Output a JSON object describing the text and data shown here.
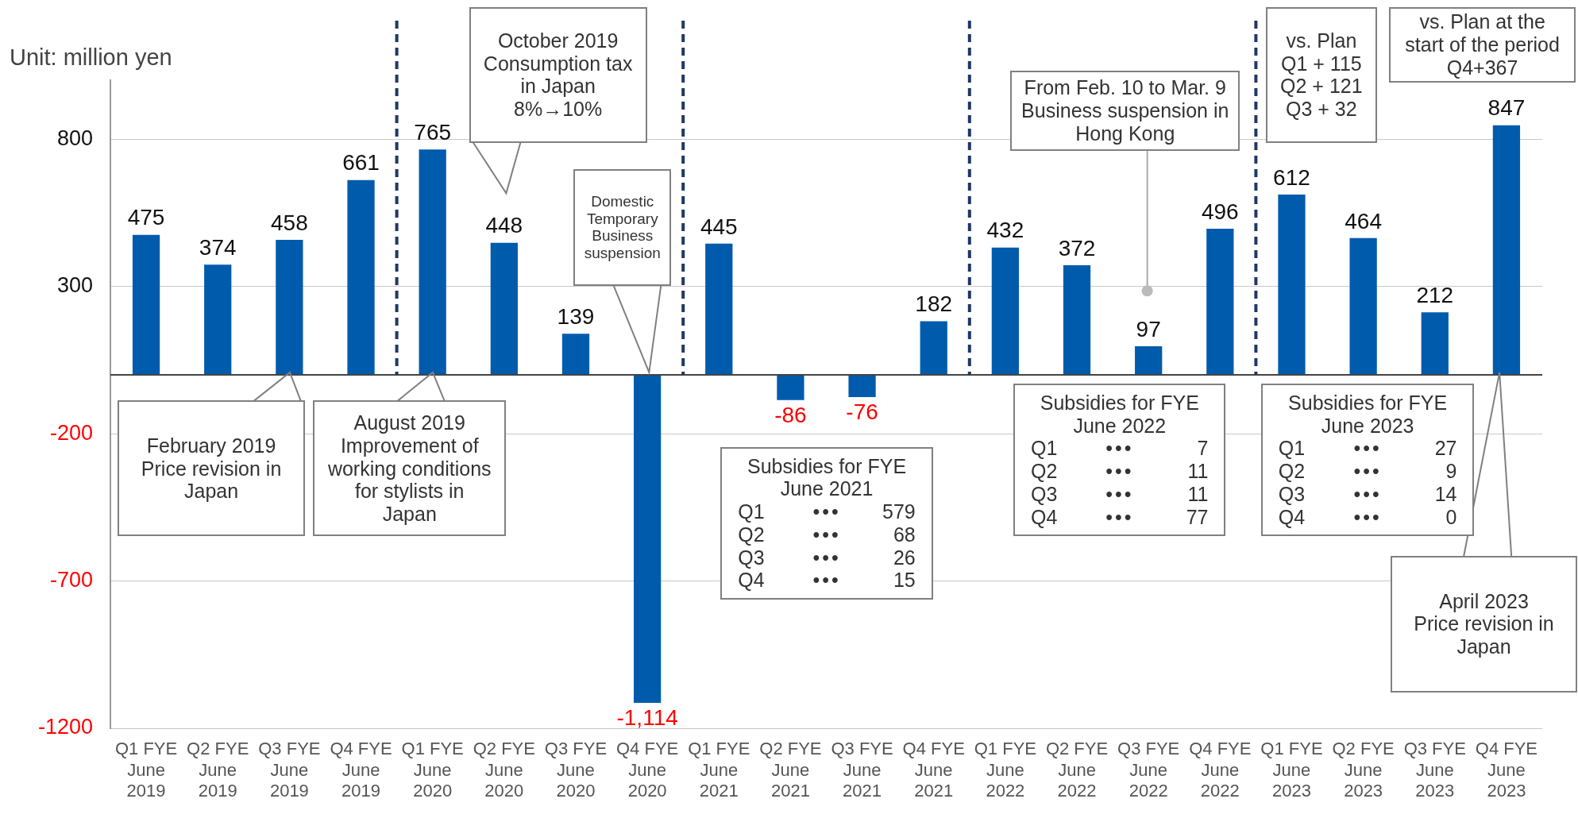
{
  "chart_data": {
    "type": "bar",
    "ylabel": "Unit: million yen",
    "categories": [
      "Q1 FYE June 2019",
      "Q2 FYE June 2019",
      "Q3 FYE June 2019",
      "Q4 FYE June 2019",
      "Q1 FYE June 2020",
      "Q2 FYE June 2020",
      "Q3 FYE June 2020",
      "Q4 FYE June 2020",
      "Q1 FYE June 2021",
      "Q2 FYE June 2021",
      "Q3 FYE June 2021",
      "Q4 FYE June 2021",
      "Q1 FYE June 2022",
      "Q2 FYE June 2022",
      "Q3 FYE June 2022",
      "Q4 FYE June 2022",
      "Q1 FYE June 2023",
      "Q2 FYE June 2023",
      "Q3 FYE June 2023",
      "Q4 FYE June 2023"
    ],
    "values": [
      475,
      374,
      458,
      661,
      765,
      448,
      139,
      -1114,
      445,
      -86,
      -76,
      182,
      432,
      372,
      97,
      496,
      612,
      464,
      212,
      847
    ],
    "value_labels": [
      "475",
      "374",
      "458",
      "661",
      "765",
      "448",
      "139",
      "-1,114",
      "445",
      "-86",
      "-76",
      "182",
      "432",
      "372",
      "97",
      "496",
      "612",
      "464",
      "212",
      "847"
    ],
    "color": "#005bac",
    "ylim": [
      -1200,
      1000
    ],
    "yticks": [
      -1200,
      -700,
      -200,
      300,
      800
    ],
    "grid": "y",
    "legend": false,
    "ref_lines": [
      {
        "axis": "x",
        "value": "Q1 FYE June 2020",
        "color": "#1f3864",
        "line_style": "dashed"
      },
      {
        "axis": "x",
        "value": "Q1 FYE June 2021",
        "color": "#1f3864",
        "line_style": "dashed"
      },
      {
        "axis": "x",
        "value": "Q1 FYE June 2022",
        "color": "#1f3864",
        "line_style": "dashed"
      },
      {
        "axis": "x",
        "value": "Q1 FYE June 2023",
        "color": "#1f3864",
        "line_style": "dashed"
      }
    ],
    "annotations": [
      "February 2019\nPrice revision in\nJapan",
      "August 2019\nImprovement of\nworking conditions\nfor stylists in\nJapan",
      "October 2019\nConsumption tax\nin Japan\n8%→10%",
      "Domestic\nTemporary\nBusiness\nsuspension",
      "Subsidies for FYE June 2021\nQ1\t•••\t579\nQ2\t•••\t68\nQ3\t•••\t26\nQ4\t•••\t15",
      "From Feb. 10 to Mar. 9\nBusiness suspension in\nHong Kong",
      "Subsidies for FYE June 2022\nQ1\t•••\t7\nQ2\t•••\t11\nQ3\t•••\t11\nQ4\t•••\t77",
      "vs. Plan\nQ1 + 115\nQ2 + 121\nQ3 + 32",
      "vs. Plan at the\nstart of the period\nQ4+367",
      "Subsidies for FYE June 2023\nQ1\t•••\t27\nQ2\t•••\t9\nQ3\t•••\t14\nQ4\t•••\t0",
      "April 2023\nPrice revision in\nJapan"
    ]
  }
}
